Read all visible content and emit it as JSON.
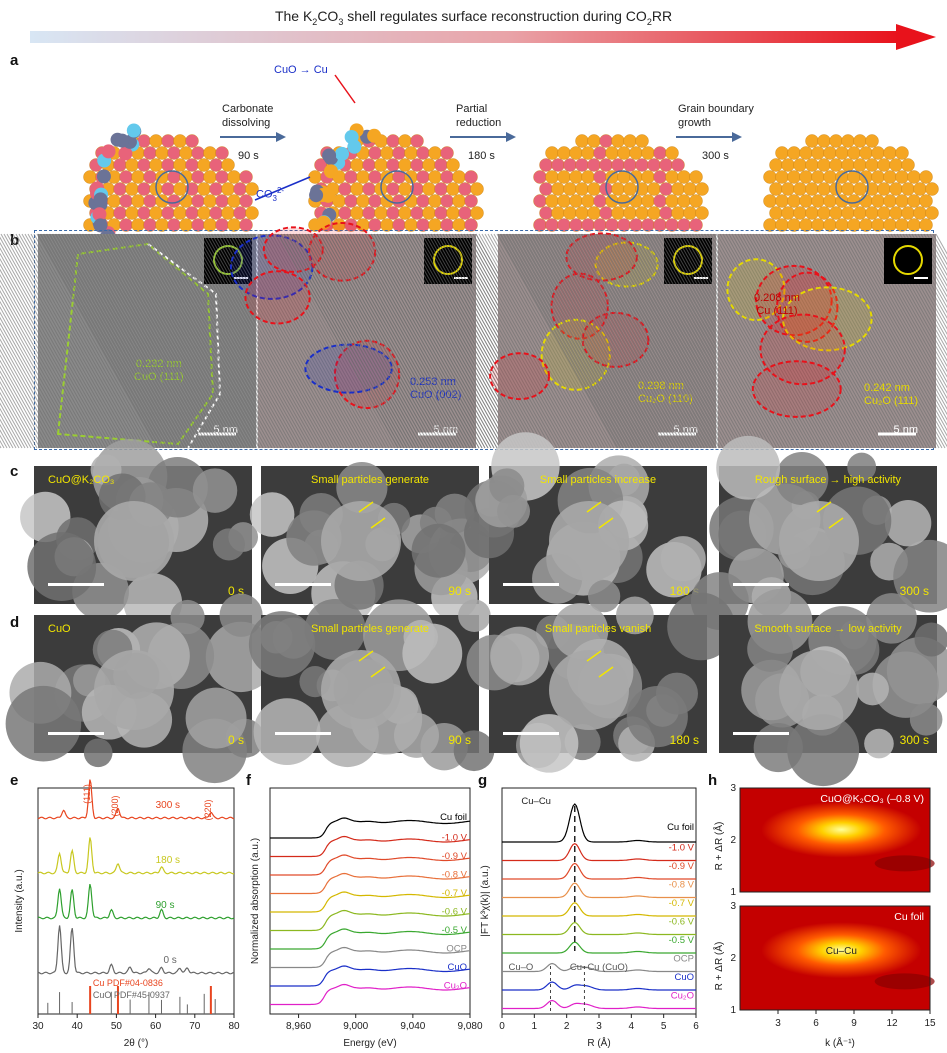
{
  "title": {
    "pre": "The K",
    "sub1": "2",
    "mid": "CO",
    "sub2": "3",
    "post": " shell regulates surface reconstruction during CO",
    "sub3": "2",
    "end": "RR"
  },
  "panels": {
    "a": "a",
    "b": "b",
    "c": "c",
    "d": "d",
    "e": "e",
    "f": "f",
    "g": "g",
    "h": "h"
  },
  "panel_a": {
    "cuo_to_cu": "CuO → Cu",
    "co3": "CO",
    "co3_sub": "3",
    "co3_sup": "2-",
    "steps": [
      {
        "label1": "Carbonate",
        "label2": "dissolving",
        "time": "90 s"
      },
      {
        "label1": "Partial",
        "label2": "reduction",
        "time": "180 s"
      },
      {
        "label1": "Grain boundary",
        "label2": "growth",
        "time": "300 s"
      }
    ]
  },
  "panel_b": {
    "scale": "5 nm",
    "annotations": [
      {
        "d": "0.232 nm",
        "phase": "CuO (111)",
        "color": "#9acd32"
      },
      {
        "d": "0.253 nm",
        "phase": "CuO (002)",
        "color": "#1a2fc8"
      },
      {
        "d": "0.298 nm",
        "phase": "Cu₂O (110)",
        "color": "#e5d800"
      },
      {
        "d": "0.208 nm",
        "phase": "Cu (111)",
        "color": "#c00000",
        "d2": "0.242 nm",
        "phase2": "Cu₂O (111)",
        "color2": "#e5d800"
      }
    ]
  },
  "panel_c": [
    {
      "caption": "CuO@K₂CO₃",
      "time": "0 s"
    },
    {
      "caption": "Small particles generate",
      "time": "90 s"
    },
    {
      "caption": "Small particles increase",
      "time": "180 s"
    },
    {
      "caption": "Rough surface → high activity",
      "time": "300 s"
    }
  ],
  "panel_d": [
    {
      "caption": "CuO",
      "time": "0 s"
    },
    {
      "caption": "Small particles generate",
      "time": "90 s"
    },
    {
      "caption": "Small particles vanish",
      "time": "180 s"
    },
    {
      "caption": "Smooth surface → low activity",
      "time": "300 s"
    }
  ],
  "colors": {
    "red_arrow": "#e8121b",
    "cu_pdf": "#e8451f",
    "grid_blue": "#3a6aa8",
    "yellow": "#f2e600"
  },
  "chart_data": [
    {
      "id": "e",
      "type": "line",
      "xlabel": "2θ (°)",
      "ylabel": "Intensity (a.u.)",
      "xlim": [
        30,
        80
      ],
      "xticks": [
        30,
        40,
        50,
        60,
        70,
        80
      ],
      "series": [
        {
          "name": "300 s",
          "color": "#e8451f"
        },
        {
          "name": "180 s",
          "color": "#c8c820"
        },
        {
          "name": "90 s",
          "color": "#2ea02e"
        },
        {
          "name": "0 s",
          "color": "#666666"
        }
      ],
      "peak_labels": [
        "(111)",
        "(200)",
        "(220)"
      ],
      "references": [
        {
          "name": "Cu PDF#04-0836",
          "color": "#e8451f",
          "x": [
            43.3,
            50.4,
            74.1
          ]
        },
        {
          "name": "CuO PDF#45-0937",
          "color": "#666666",
          "x": [
            32.5,
            35.5,
            38.7,
            48.7,
            53.5,
            58.3,
            61.5,
            66.2,
            68.1,
            72.4,
            75.2
          ]
        }
      ]
    },
    {
      "id": "f",
      "type": "line",
      "xlabel": "Energy (eV)",
      "ylabel": "Normalized absorption (a.u.)",
      "xlim": [
        8940,
        9080
      ],
      "xticks": [
        8960,
        9000,
        9040,
        9080
      ],
      "series": [
        {
          "name": "Cu foil",
          "color": "#000000"
        },
        {
          "name": "-1.0 V",
          "color": "#d42a1a"
        },
        {
          "name": "-0.9 V",
          "color": "#e04a2a"
        },
        {
          "name": "-0.8 V",
          "color": "#e8703a"
        },
        {
          "name": "-0.7 V",
          "color": "#d4b800"
        },
        {
          "name": "-0.6 V",
          "color": "#8cb820"
        },
        {
          "name": "-0.5 V",
          "color": "#3aa830"
        },
        {
          "name": "OCP",
          "color": "#888888"
        },
        {
          "name": "CuO",
          "color": "#1a2fc8"
        },
        {
          "name": "Cu₂O",
          "color": "#e020c8"
        }
      ]
    },
    {
      "id": "g",
      "type": "line",
      "xlabel": "R (Å)",
      "ylabel": "|FT k³χ(k)| (a.u.)",
      "xlim": [
        0,
        6
      ],
      "xticks": [
        0,
        1,
        2,
        3,
        4,
        5,
        6
      ],
      "annotations": [
        "Cu–Cu",
        "Cu–O",
        "Cu–Cu (CuO)"
      ],
      "series": [
        {
          "name": "Cu foil",
          "color": "#000000"
        },
        {
          "name": "-1.0 V",
          "color": "#d42a1a"
        },
        {
          "name": "-0.9 V",
          "color": "#e04a2a"
        },
        {
          "name": "-0.8 V",
          "color": "#e8904a"
        },
        {
          "name": "-0.7 V",
          "color": "#d4b800"
        },
        {
          "name": "-0.6 V",
          "color": "#8cb820"
        },
        {
          "name": "-0.5 V",
          "color": "#3aa830"
        },
        {
          "name": "OCP",
          "color": "#888888"
        },
        {
          "name": "CuO",
          "color": "#1a2fc8"
        },
        {
          "name": "Cu₂O",
          "color": "#e020c8"
        }
      ]
    },
    {
      "id": "h",
      "type": "heatmap",
      "xlabel": "k (Å⁻¹)",
      "ylabel": "R + ΔR (Å)",
      "xlim": [
        0,
        15
      ],
      "xticks": [
        3,
        6,
        9,
        12,
        15
      ],
      "ylim": [
        1,
        3
      ],
      "yticks": [
        1,
        2,
        3
      ],
      "maps": [
        {
          "label": "CuO@K₂CO₃ (–0.8 V)",
          "center_k": 8,
          "center_r": 2.2
        },
        {
          "label": "Cu foil",
          "annotation": "Cu–Cu",
          "center_k": 8,
          "center_r": 2.15
        }
      ]
    }
  ]
}
